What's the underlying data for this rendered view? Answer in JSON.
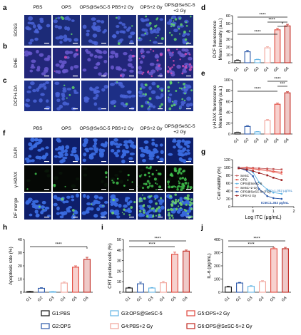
{
  "panel_letters": {
    "a": "a",
    "b": "b",
    "c": "c",
    "d": "d",
    "e": "e",
    "f": "f",
    "g": "g",
    "h": "h",
    "i": "i",
    "j": "j"
  },
  "top_columns": [
    "PBS",
    "OPS",
    "OPS@SeSC-5",
    "PBS+2 Gy",
    "OPS+2 Gy",
    "OPS@SeSC-5"
  ],
  "top_column_line2": "+2 Gy",
  "top_rows": [
    "SOSG",
    "DHE",
    "DCFH-DA"
  ],
  "f_columns": [
    "PBS",
    "OPS",
    "OPS@SeSC-5",
    "PBS+2 Gy",
    "OPS+2 Gy",
    "OPS@SeSC-5"
  ],
  "f_column_line2": "+2 Gy",
  "f_rows": [
    "DAPI",
    "γ-H2AX",
    "DF merge"
  ],
  "colors": {
    "G1": "#111111",
    "G2": "#2a57a8",
    "G3": "#63b4e4",
    "G4": "#f1a39a",
    "G5": "#e0473c",
    "G6": "#c0271f",
    "dapi": "#2f5cc8",
    "sosg": "#2a3f9e",
    "dhe": "#3a3fa8",
    "dcfh": "#2e46a5",
    "green": "#4caa55"
  },
  "significance": "****",
  "significance_single": "*",
  "significance_triple": "***",
  "legend": {
    "G1": "G1:PBS",
    "G2": "G2:OPS",
    "G3": "G3:OPS@SeSC-5",
    "G4": "G4:PBS+2 Gy",
    "G5": "G5:OPS+2 Gy",
    "G6": "G6:OPS@SeSC-5+2 Gy"
  },
  "chart_data": [
    {
      "id": "d",
      "type": "bar",
      "categories": [
        "G1",
        "G2",
        "G3",
        "G4",
        "G5",
        "G6"
      ],
      "values": [
        3,
        14,
        4,
        19,
        42,
        47
      ],
      "errors": [
        0.6,
        2,
        0.5,
        1.5,
        2,
        2
      ],
      "ylabel_line1": "DCF fluorescence",
      "ylabel_line2": "Mean intensity (a.u.)",
      "ylim": [
        0,
        60
      ],
      "yticks": [
        "0",
        "10",
        "20",
        "30",
        "40",
        "50",
        "60"
      ]
    },
    {
      "id": "e",
      "type": "bar",
      "categories": [
        "G1",
        "G2",
        "G3",
        "G4",
        "G5",
        "G6"
      ],
      "values": [
        3,
        14,
        4,
        25,
        55,
        76
      ],
      "errors": [
        0.6,
        1.5,
        0.6,
        2,
        2,
        2
      ],
      "ylabel_line1": "γ-H2AX fluorescence",
      "ylabel_line2": "Mean intensity (a.u.)",
      "ylim": [
        0,
        100
      ],
      "yticks": [
        "0",
        "20",
        "40",
        "60",
        "80",
        "100"
      ]
    },
    {
      "id": "g",
      "type": "line",
      "xlabel": "Log ITC (μg/mL)",
      "ylabel": "Cell viability (%)",
      "ylim": [
        0,
        120
      ],
      "xlim": [
        -1,
        2
      ],
      "yticks": [
        "0",
        "20",
        "40",
        "60",
        "80",
        "100",
        "120"
      ],
      "xticks": [
        "0",
        "1",
        "2"
      ],
      "x": [
        -0.7,
        -0.3,
        0,
        0.3,
        0.7,
        1.0,
        1.4
      ],
      "series": [
        {
          "name": "SeSC",
          "values": [
            100,
            100,
            99,
            98,
            97,
            96,
            95
          ]
        },
        {
          "name": "OPS",
          "values": [
            100,
            99,
            97,
            95,
            93,
            90,
            88
          ]
        },
        {
          "name": "OPS@SeSC-5",
          "values": [
            100,
            96,
            88,
            62,
            44,
            36,
            33
          ]
        },
        {
          "name": "SeSC+2 Gy",
          "values": [
            99,
            98,
            96,
            94,
            92,
            88,
            84
          ]
        },
        {
          "name": "OPS@SeSC-5+2 Gy",
          "values": [
            99,
            92,
            78,
            45,
            27,
            22,
            20
          ]
        },
        {
          "name": "OPS+2 Gy",
          "values": [
            98,
            95,
            91,
            86,
            80,
            74,
            68
          ]
        }
      ],
      "annotations": [
        "IC50=1.052 μg/mL",
        "IC50=1.353 μg/mL"
      ]
    },
    {
      "id": "h",
      "type": "bar",
      "categories": [
        "G1",
        "G2",
        "G3",
        "G4",
        "G5",
        "G6"
      ],
      "values": [
        0.5,
        3,
        0.4,
        7,
        19,
        25
      ],
      "errors": [
        0.2,
        0.5,
        0.2,
        0.8,
        1,
        1.5
      ],
      "ylabel": "Apoptosis rate (%)",
      "ylim": [
        0,
        40
      ],
      "yticks": [
        "0",
        "10",
        "20",
        "30",
        "40"
      ]
    },
    {
      "id": "i",
      "type": "bar",
      "categories": [
        "G1",
        "G2",
        "G3",
        "G4",
        "G5",
        "G6"
      ],
      "values": [
        4,
        8,
        4,
        9,
        36,
        39
      ],
      "errors": [
        0.6,
        1.5,
        0.5,
        1.5,
        2,
        1
      ],
      "ylabel": "CRT positive cells (%)",
      "ylim": [
        0,
        50
      ],
      "yticks": [
        "0",
        "10",
        "20",
        "30",
        "40",
        "50"
      ]
    },
    {
      "id": "j",
      "type": "bar",
      "categories": [
        "G1",
        "G2",
        "G3",
        "G4",
        "G5",
        "G6"
      ],
      "values": [
        40,
        70,
        45,
        80,
        330,
        330
      ],
      "errors": [
        5,
        5,
        5,
        8,
        10,
        10
      ],
      "ylabel": "IL-6 (pg/mL)",
      "ylim": [
        0,
        400
      ],
      "yticks": [
        "0",
        "100",
        "200",
        "300",
        "400"
      ]
    }
  ]
}
